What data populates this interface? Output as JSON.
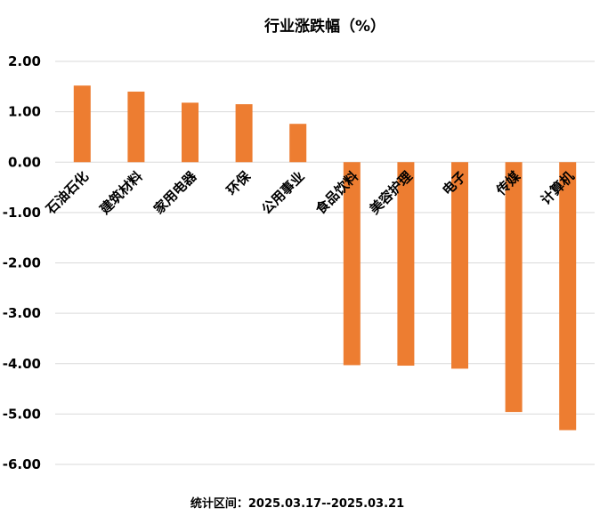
{
  "chart_data": {
    "type": "bar",
    "title": "行业涨跌幅（%）",
    "categories": [
      "石油石化",
      "建筑材料",
      "家用电器",
      "环保",
      "公用事业",
      "食品饮料",
      "美容护理",
      "电子",
      "传媒",
      "计算机"
    ],
    "values": [
      1.52,
      1.4,
      1.18,
      1.15,
      0.76,
      -4.03,
      -4.04,
      -4.1,
      -4.96,
      -5.32
    ],
    "ylim": [
      -6.0,
      2.0
    ],
    "yticks": [
      "2.00",
      "1.00",
      "0.00",
      "-1.00",
      "-2.00",
      "-3.00",
      "-4.00",
      "-5.00",
      "-6.00"
    ],
    "xlabel": "",
    "ylabel": "",
    "grid": true,
    "legend": "none",
    "bar_color": "#ED7D31"
  },
  "footnote": "统计区间：2025.03.17--2025.03.21"
}
